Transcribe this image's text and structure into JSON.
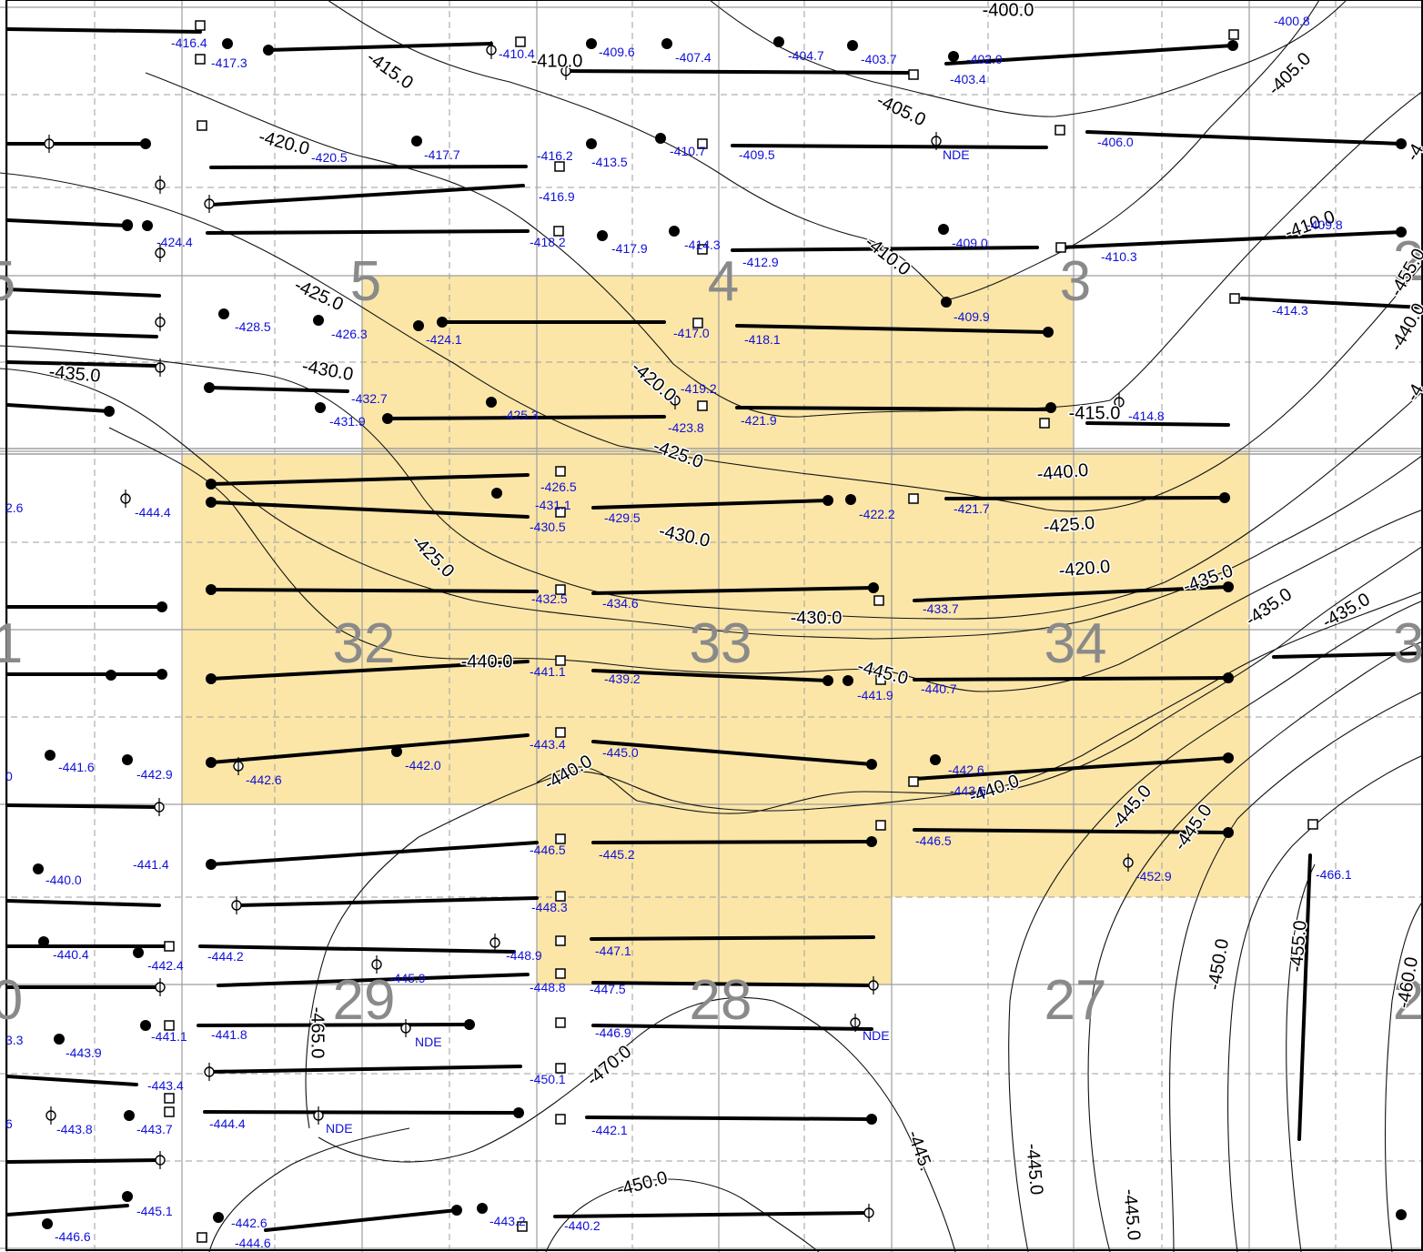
{
  "colors": {
    "highlight_fill": "#fbe6a8",
    "value_text": "#1010d8",
    "section_text": "#8a8a8a",
    "grid": "#9e9e9e",
    "contour": "#111111"
  },
  "sections": [
    "5",
    "4",
    "3",
    "32",
    "33",
    "34",
    "29",
    "28",
    "27"
  ],
  "edge_sections": [
    "5",
    "2",
    "1",
    "3",
    "0",
    "2"
  ],
  "contour_labels": [
    "-415.0",
    "-410.0",
    "-405.0",
    "-420.0",
    "-425.0",
    "-430.0",
    "-435.0",
    "-405.0",
    "-410.0",
    "-4",
    "-420.0",
    "-425.0",
    "-410.0",
    "-415.0",
    "-430.0",
    "-440.0",
    "-425.0",
    "-420.0",
    "-425.0",
    "-430.0",
    "-435.0",
    "-435.0",
    "-435.0",
    "-440.0",
    "-445.0",
    "-440.0",
    "-440.0",
    "-445.0",
    "-445.0",
    "-450.0",
    "-455.0",
    "-460.0",
    "-465.0",
    "-470.0",
    "-445.",
    "-445.0",
    "-445.0",
    "-450.0",
    "-455.0",
    "-440.0",
    "-400.0",
    "-4"
  ],
  "value_labels": [
    "-416.4",
    "-417.3",
    "-410.4",
    "-409.6",
    "-407.4",
    "-404.7",
    "-403.7",
    "-402.0",
    "-403.4",
    "-400.8",
    "-420.5",
    "-417.7",
    "-416.2",
    "-413.5",
    "-410.7",
    "-409.5",
    "NDE",
    "-406.0",
    "-416.9",
    "-424.4",
    "-418.2",
    "-417.9",
    "-414.3",
    "-412.9",
    "-409.0",
    "-410.3",
    "-409.8",
    "-428.5",
    "-426.3",
    "-424.1",
    "-417.0",
    "-418.1",
    "-409.9",
    "-414.3",
    "-432.7",
    "-431.9",
    "-425.3",
    "-419.2",
    "-423.8",
    "-421.9",
    "-414.8",
    "2.6",
    "-444.4",
    "-426.5",
    "-431.1",
    "-430.5",
    "-429.5",
    "-422.2",
    "-421.7",
    "-432.5",
    "-434.6",
    "-433.7",
    "-441.1",
    "-439.2",
    "-441.9",
    "-440.7",
    "-441.6",
    "-442.9",
    "-442.6",
    "-442.0",
    "-443.4",
    "-445.0",
    "-442.6",
    "-443.6",
    "0",
    "-441.4",
    "-440.0",
    "-446.5",
    "-445.2",
    "-446.5",
    "-452.9",
    "-466.1",
    "-448.3",
    "-440.4",
    "-442.4",
    "-444.2",
    "-448.9",
    "-447.1",
    "-445.9",
    "-448.8",
    "-447.5",
    "-441.1",
    "-441.8",
    "NDE",
    "-446.9",
    "NDE",
    "3.3",
    "-443.9",
    "-443.4",
    "-450.1",
    "-443.8",
    "-443.7",
    "-444.4",
    "NDE",
    "6",
    "-442.1",
    "-445.1",
    "-446.6",
    "-442.6",
    "-444.6",
    "-443.2",
    "-440.2"
  ]
}
